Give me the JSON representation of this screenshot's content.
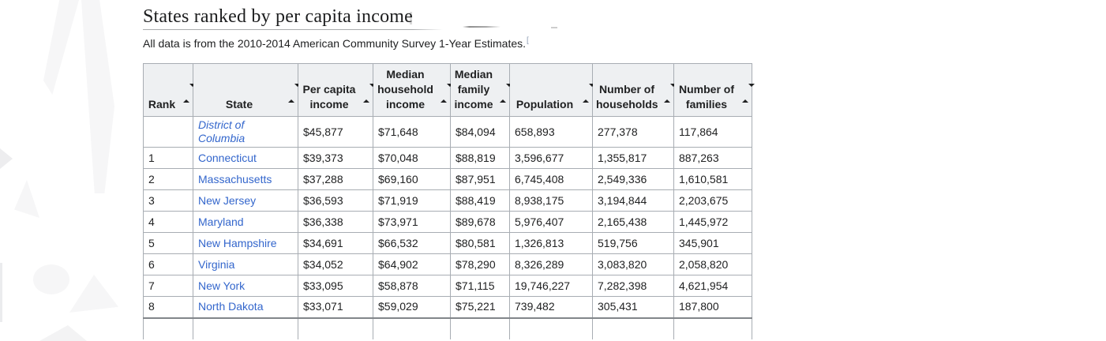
{
  "page": {
    "title": "States ranked by per capita income",
    "subtitle": "All data is from the 2010-2014 American Community Survey 1-Year Estimates.",
    "footnote_marker": "["
  },
  "icons": {
    "sort": "sort-both-triangles ▲▼"
  },
  "colors": {
    "link": "#3366cc",
    "header_bg": "#eef0f2",
    "border": "#a8adb3",
    "text": "#202122",
    "title_rule": "#a9abad",
    "table_cut_border": "#82868a"
  },
  "table": {
    "columns": [
      {
        "key": "rank",
        "label": "Rank",
        "sortable": true
      },
      {
        "key": "state",
        "label": "State",
        "sortable": true
      },
      {
        "key": "per_capita_income",
        "label": "Per capita income",
        "sortable": true
      },
      {
        "key": "median_household_income",
        "label": "Median household income",
        "sortable": true
      },
      {
        "key": "median_family_income",
        "label": "Median family income",
        "sortable": true
      },
      {
        "key": "population",
        "label": "Population",
        "sortable": true
      },
      {
        "key": "number_of_households",
        "label": "Number of households",
        "sortable": true
      },
      {
        "key": "number_of_families",
        "label": "Number of families",
        "sortable": true
      }
    ],
    "rows": [
      {
        "rank": "",
        "state": "District of Columbia",
        "state_italic": true,
        "per_capita_income": "$45,877",
        "median_household_income": "$71,648",
        "median_family_income": "$84,094",
        "population": "658,893",
        "number_of_households": "277,378",
        "number_of_families": "117,864"
      },
      {
        "rank": "1",
        "state": "Connecticut",
        "state_italic": false,
        "per_capita_income": "$39,373",
        "median_household_income": "$70,048",
        "median_family_income": "$88,819",
        "population": "3,596,677",
        "number_of_households": "1,355,817",
        "number_of_families": "887,263"
      },
      {
        "rank": "2",
        "state": "Massachusetts",
        "state_italic": false,
        "per_capita_income": "$37,288",
        "median_household_income": "$69,160",
        "median_family_income": "$87,951",
        "population": "6,745,408",
        "number_of_households": "2,549,336",
        "number_of_families": "1,610,581"
      },
      {
        "rank": "3",
        "state": "New Jersey",
        "state_italic": false,
        "per_capita_income": "$36,593",
        "median_household_income": "$71,919",
        "median_family_income": "$88,419",
        "population": "8,938,175",
        "number_of_households": "3,194,844",
        "number_of_families": "2,203,675"
      },
      {
        "rank": "4",
        "state": "Maryland",
        "state_italic": false,
        "per_capita_income": "$36,338",
        "median_household_income": "$73,971",
        "median_family_income": "$89,678",
        "population": "5,976,407",
        "number_of_households": "2,165,438",
        "number_of_families": "1,445,972"
      },
      {
        "rank": "5",
        "state": "New Hampshire",
        "state_italic": false,
        "per_capita_income": "$34,691",
        "median_household_income": "$66,532",
        "median_family_income": "$80,581",
        "population": "1,326,813",
        "number_of_households": "519,756",
        "number_of_families": "345,901"
      },
      {
        "rank": "6",
        "state": "Virginia",
        "state_italic": false,
        "per_capita_income": "$34,052",
        "median_household_income": "$64,902",
        "median_family_income": "$78,290",
        "population": "8,326,289",
        "number_of_households": "3,083,820",
        "number_of_families": "2,058,820"
      },
      {
        "rank": "7",
        "state": "New York",
        "state_italic": false,
        "per_capita_income": "$33,095",
        "median_household_income": "$58,878",
        "median_family_income": "$71,115",
        "population": "19,746,227",
        "number_of_households": "7,282,398",
        "number_of_families": "4,621,954"
      },
      {
        "rank": "8",
        "state": "North Dakota",
        "state_italic": false,
        "per_capita_income": "$33,071",
        "median_household_income": "$59,029",
        "median_family_income": "$75,221",
        "population": "739,482",
        "number_of_households": "305,431",
        "number_of_families": "187,800"
      }
    ]
  }
}
